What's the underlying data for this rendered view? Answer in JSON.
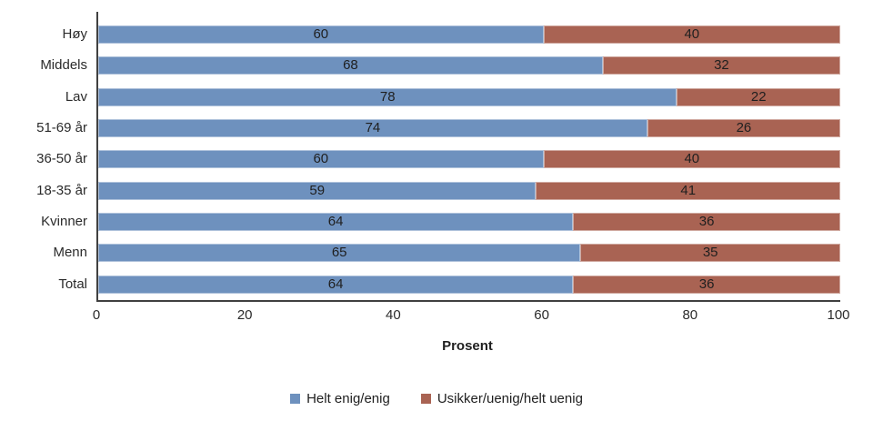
{
  "chart_data": {
    "type": "bar",
    "orientation": "horizontal",
    "stacked": true,
    "title": "",
    "xlabel": "Prosent",
    "ylabel": "",
    "xlim": [
      0,
      100
    ],
    "xticks": [
      0,
      20,
      40,
      60,
      80,
      100
    ],
    "grid": false,
    "legend_position": "bottom",
    "categories": [
      "Høy",
      "Middels",
      "Lav",
      "51-69 år",
      "36-50 år",
      "18-35 år",
      "Kvinner",
      "Menn",
      "Total"
    ],
    "series": [
      {
        "name": "Helt enig/enig",
        "color": "#6e91be",
        "values": [
          60,
          68,
          78,
          74,
          60,
          59,
          64,
          65,
          64
        ]
      },
      {
        "name": "Usikker/uenig/helt uenig",
        "color": "#a96353",
        "values": [
          40,
          32,
          22,
          26,
          40,
          41,
          36,
          35,
          36
        ]
      }
    ],
    "colors": {
      "axis_line": "#404040",
      "text": "#1f1f1f"
    }
  }
}
